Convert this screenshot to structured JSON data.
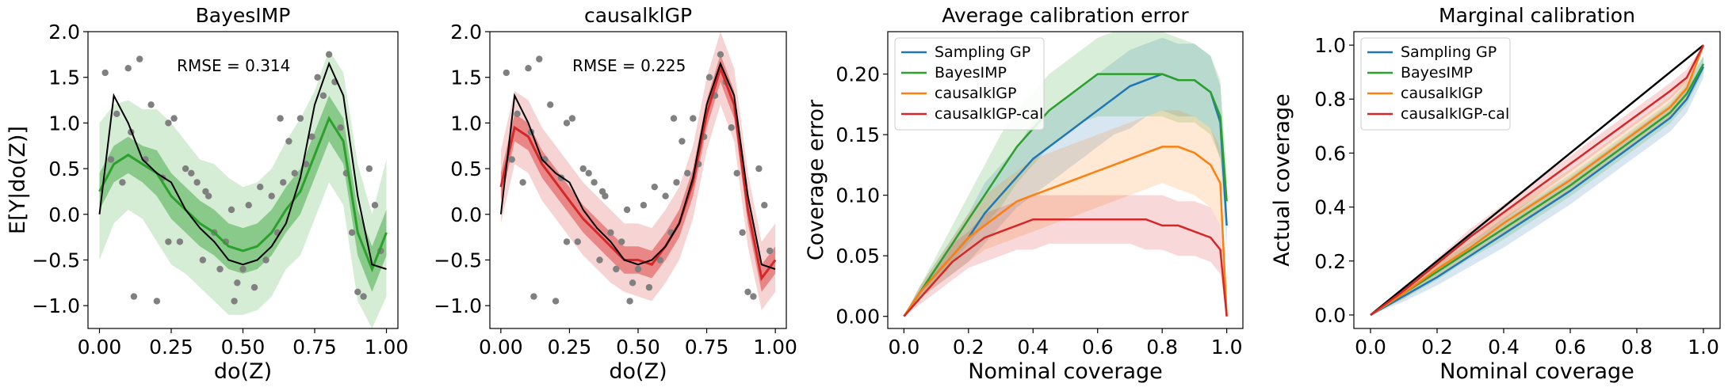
{
  "chart_data": [
    {
      "type": "line",
      "title": "BayesIMP",
      "xlabel": "do(Z)",
      "ylabel": "E[Y|do(Z)]",
      "annotation": "RMSE = 0.314",
      "xlim": [
        -0.04,
        1.04
      ],
      "ylim": [
        -1.25,
        2.0
      ],
      "xticks": [
        0,
        0.25,
        0.5,
        0.75,
        1.0
      ],
      "xtick_labels": [
        "0.00",
        "0.25",
        "0.50",
        "0.75",
        "1.00"
      ],
      "yticks": [
        -1.0,
        -0.5,
        0.0,
        0.5,
        1.0,
        1.5,
        2.0
      ],
      "ytick_labels": [
        "−1.0",
        "−0.5",
        "0.0",
        "0.5",
        "1.0",
        "1.5",
        "2.0"
      ],
      "color": "#2ca02c",
      "x": [
        0,
        0.05,
        0.1,
        0.15,
        0.2,
        0.25,
        0.3,
        0.35,
        0.4,
        0.45,
        0.5,
        0.55,
        0.6,
        0.65,
        0.7,
        0.75,
        0.8,
        0.85,
        0.9,
        0.95,
        1.0
      ],
      "true_effect": [
        0.0,
        1.3,
        1.0,
        0.6,
        0.45,
        0.35,
        0.05,
        -0.15,
        -0.3,
        -0.5,
        -0.55,
        -0.5,
        -0.35,
        -0.1,
        0.4,
        1.2,
        1.65,
        1.3,
        0.2,
        -0.55,
        -0.6
      ],
      "mean": [
        0.25,
        0.55,
        0.65,
        0.55,
        0.45,
        0.2,
        0.05,
        -0.1,
        -0.2,
        -0.35,
        -0.4,
        -0.35,
        -0.2,
        0.05,
        0.25,
        0.65,
        1.05,
        0.8,
        -0.2,
        -0.6,
        -0.2
      ],
      "inner_lower": [
        0.05,
        0.35,
        0.45,
        0.35,
        0.2,
        -0.05,
        -0.2,
        -0.35,
        -0.45,
        -0.6,
        -0.65,
        -0.6,
        -0.45,
        -0.2,
        0.0,
        0.4,
        0.8,
        0.55,
        -0.45,
        -0.85,
        -0.45
      ],
      "inner_upper": [
        0.45,
        0.75,
        0.85,
        0.75,
        0.7,
        0.45,
        0.3,
        0.15,
        0.05,
        -0.1,
        -0.15,
        -0.1,
        0.05,
        0.3,
        0.5,
        0.9,
        1.3,
        1.05,
        0.05,
        -0.35,
        0.05
      ],
      "outer_lower": [
        -0.5,
        -0.1,
        0.05,
        -0.05,
        -0.3,
        -0.55,
        -0.65,
        -0.8,
        -0.95,
        -1.1,
        -1.1,
        -1.05,
        -0.9,
        -0.6,
        -0.45,
        -0.05,
        0.35,
        0.1,
        -0.95,
        -1.25,
        -0.9
      ],
      "outer_upper": [
        1.0,
        1.2,
        1.25,
        1.15,
        1.15,
        1.0,
        0.8,
        0.6,
        0.55,
        0.4,
        0.3,
        0.35,
        0.5,
        0.8,
        1.05,
        1.35,
        1.8,
        1.55,
        0.55,
        0.0,
        0.6
      ],
      "observations_x": [
        0.02,
        0.04,
        0.06,
        0.08,
        0.1,
        0.12,
        0.14,
        0.16,
        0.18,
        0.2,
        0.22,
        0.24,
        0.26,
        0.28,
        0.3,
        0.32,
        0.34,
        0.36,
        0.38,
        0.4,
        0.42,
        0.44,
        0.46,
        0.48,
        0.5,
        0.52,
        0.54,
        0.56,
        0.58,
        0.6,
        0.62,
        0.64,
        0.66,
        0.68,
        0.7,
        0.72,
        0.74,
        0.76,
        0.78,
        0.8,
        0.82,
        0.84,
        0.86,
        0.88,
        0.9,
        0.92,
        0.94,
        0.96,
        0.98,
        0.11,
        0.24,
        0.37,
        0.47,
        0.63
      ],
      "observations_y": [
        1.55,
        0.6,
        1.1,
        0.35,
        1.6,
        -0.9,
        1.7,
        0.6,
        1.2,
        -0.95,
        0.4,
        1.0,
        1.05,
        -0.3,
        0.5,
        0.45,
        0.35,
        -0.5,
        0.2,
        -0.2,
        -0.6,
        -0.3,
        0.05,
        -0.75,
        -0.6,
        0.1,
        -0.8,
        0.3,
        -0.5,
        0.2,
        -0.2,
        0.35,
        0.8,
        0.45,
        1.05,
        0.55,
        0.85,
        1.5,
        1.3,
        1.75,
        1.45,
        0.95,
        0.45,
        -0.2,
        -0.85,
        -0.9,
        0.5,
        0.1,
        -0.4,
        0.9,
        -0.3,
        0.25,
        -0.95,
        1.05
      ]
    },
    {
      "type": "line",
      "title": "causalklGP",
      "xlabel": "do(Z)",
      "annotation": "RMSE = 0.225",
      "xlim": [
        -0.04,
        1.04
      ],
      "ylim": [
        -1.25,
        2.0
      ],
      "xticks": [
        0,
        0.25,
        0.5,
        0.75,
        1.0
      ],
      "xtick_labels": [
        "0.00",
        "0.25",
        "0.50",
        "0.75",
        "1.00"
      ],
      "yticks": [
        -1.0,
        -0.5,
        0.0,
        0.5,
        1.0,
        1.5,
        2.0
      ],
      "ytick_labels": [
        "−1.0",
        "−0.5",
        "0.0",
        "0.5",
        "1.0",
        "1.5",
        "2.0"
      ],
      "color": "#d62728",
      "x": [
        0,
        0.05,
        0.1,
        0.15,
        0.2,
        0.25,
        0.3,
        0.35,
        0.4,
        0.45,
        0.5,
        0.55,
        0.6,
        0.65,
        0.7,
        0.75,
        0.8,
        0.85,
        0.9,
        0.95,
        1.0
      ],
      "true_effect": [
        0.0,
        1.3,
        1.0,
        0.6,
        0.45,
        0.35,
        0.05,
        -0.15,
        -0.3,
        -0.5,
        -0.55,
        -0.5,
        -0.35,
        -0.1,
        0.4,
        1.2,
        1.65,
        1.3,
        0.2,
        -0.55,
        -0.6
      ],
      "mean": [
        0.3,
        0.95,
        0.85,
        0.55,
        0.35,
        0.15,
        -0.05,
        -0.2,
        -0.35,
        -0.5,
        -0.5,
        -0.55,
        -0.35,
        -0.1,
        0.35,
        1.1,
        1.6,
        1.2,
        0.05,
        -0.7,
        -0.5
      ],
      "inner_lower": [
        0.15,
        0.8,
        0.7,
        0.4,
        0.2,
        0.0,
        -0.2,
        -0.35,
        -0.5,
        -0.65,
        -0.65,
        -0.7,
        -0.5,
        -0.25,
        0.2,
        0.95,
        1.45,
        1.05,
        -0.1,
        -0.85,
        -0.65
      ],
      "inner_upper": [
        0.45,
        1.1,
        1.0,
        0.7,
        0.5,
        0.3,
        0.1,
        -0.05,
        -0.2,
        -0.35,
        -0.35,
        -0.4,
        -0.2,
        0.05,
        0.5,
        1.25,
        1.75,
        1.35,
        0.2,
        -0.55,
        -0.35
      ],
      "outer_lower": [
        -0.1,
        0.55,
        0.45,
        0.15,
        -0.05,
        -0.25,
        -0.45,
        -0.6,
        -0.75,
        -0.85,
        -0.9,
        -0.95,
        -0.75,
        -0.5,
        -0.05,
        0.7,
        1.2,
        0.8,
        -0.35,
        -1.05,
        -0.85
      ],
      "outer_upper": [
        0.7,
        1.35,
        1.25,
        0.95,
        0.75,
        0.55,
        0.35,
        0.2,
        0.05,
        -0.1,
        -0.1,
        -0.15,
        0.05,
        0.3,
        0.75,
        1.5,
        2.0,
        1.6,
        0.45,
        -0.3,
        -0.1
      ],
      "observations_x": [
        0.02,
        0.04,
        0.06,
        0.08,
        0.1,
        0.12,
        0.14,
        0.16,
        0.18,
        0.2,
        0.22,
        0.24,
        0.26,
        0.28,
        0.3,
        0.32,
        0.34,
        0.36,
        0.38,
        0.4,
        0.42,
        0.44,
        0.46,
        0.48,
        0.5,
        0.52,
        0.54,
        0.56,
        0.58,
        0.6,
        0.62,
        0.64,
        0.66,
        0.68,
        0.7,
        0.72,
        0.74,
        0.76,
        0.78,
        0.8,
        0.82,
        0.84,
        0.86,
        0.88,
        0.9,
        0.92,
        0.94,
        0.96,
        0.98,
        0.11,
        0.24,
        0.37,
        0.47,
        0.63
      ],
      "observations_y": [
        1.55,
        0.6,
        1.1,
        0.35,
        1.6,
        -0.9,
        1.7,
        0.6,
        1.2,
        -0.95,
        0.4,
        1.0,
        1.05,
        -0.3,
        0.5,
        0.45,
        0.35,
        -0.5,
        0.2,
        -0.2,
        -0.6,
        -0.3,
        0.05,
        -0.75,
        -0.6,
        0.1,
        -0.8,
        0.3,
        -0.5,
        0.2,
        -0.2,
        0.35,
        0.8,
        0.45,
        1.05,
        0.55,
        0.85,
        1.5,
        1.3,
        1.75,
        1.45,
        0.95,
        0.45,
        -0.2,
        -0.85,
        -0.9,
        0.5,
        0.1,
        -0.4,
        0.9,
        -0.3,
        0.25,
        -0.95,
        1.05
      ]
    },
    {
      "type": "line",
      "title": "Average calibration error",
      "xlabel": "Nominal coverage",
      "ylabel": "Coverage error",
      "xlim": [
        -0.05,
        1.05
      ],
      "ylim": [
        -0.01,
        0.235
      ],
      "xticks": [
        0,
        0.2,
        0.4,
        0.6,
        0.8,
        1.0
      ],
      "xtick_labels": [
        "0.0",
        "0.2",
        "0.4",
        "0.6",
        "0.8",
        "1.0"
      ],
      "yticks": [
        0,
        0.05,
        0.1,
        0.15,
        0.2
      ],
      "ytick_labels": [
        "0.00",
        "0.05",
        "0.10",
        "0.15",
        "0.20"
      ],
      "legend": "top-left",
      "x": [
        0,
        0.05,
        0.1,
        0.15,
        0.2,
        0.25,
        0.3,
        0.35,
        0.4,
        0.45,
        0.5,
        0.55,
        0.6,
        0.65,
        0.7,
        0.75,
        0.8,
        0.85,
        0.9,
        0.95,
        0.98,
        1.0
      ],
      "series": [
        {
          "name": "Sampling GP",
          "color": "#1f77b4",
          "values": [
            0,
            0.02,
            0.035,
            0.05,
            0.065,
            0.085,
            0.1,
            0.115,
            0.13,
            0.14,
            0.15,
            0.16,
            0.17,
            0.18,
            0.19,
            0.195,
            0.2,
            0.195,
            0.195,
            0.185,
            0.16,
            0.075
          ],
          "lower": [
            0,
            0.015,
            0.025,
            0.035,
            0.045,
            0.06,
            0.075,
            0.09,
            0.1,
            0.11,
            0.12,
            0.13,
            0.14,
            0.15,
            0.155,
            0.165,
            0.17,
            0.165,
            0.165,
            0.155,
            0.13,
            0.055
          ],
          "upper": [
            0,
            0.025,
            0.045,
            0.065,
            0.085,
            0.11,
            0.125,
            0.14,
            0.16,
            0.17,
            0.18,
            0.19,
            0.2,
            0.21,
            0.22,
            0.225,
            0.23,
            0.225,
            0.225,
            0.215,
            0.19,
            0.1
          ]
        },
        {
          "name": "BayesIMP",
          "color": "#2ca02c",
          "values": [
            0,
            0.02,
            0.04,
            0.06,
            0.08,
            0.1,
            0.12,
            0.14,
            0.155,
            0.17,
            0.18,
            0.19,
            0.2,
            0.2,
            0.2,
            0.2,
            0.2,
            0.195,
            0.195,
            0.185,
            0.165,
            0.095
          ],
          "lower": [
            0,
            0.015,
            0.03,
            0.045,
            0.06,
            0.075,
            0.09,
            0.11,
            0.125,
            0.14,
            0.15,
            0.16,
            0.165,
            0.165,
            0.165,
            0.165,
            0.165,
            0.16,
            0.16,
            0.15,
            0.13,
            0.07
          ],
          "upper": [
            0,
            0.025,
            0.05,
            0.075,
            0.1,
            0.125,
            0.15,
            0.17,
            0.185,
            0.2,
            0.21,
            0.22,
            0.23,
            0.235,
            0.235,
            0.235,
            0.235,
            0.23,
            0.225,
            0.215,
            0.195,
            0.12
          ]
        },
        {
          "name": "causalklGP",
          "color": "#ff7f0e",
          "values": [
            0,
            0.02,
            0.035,
            0.05,
            0.065,
            0.075,
            0.085,
            0.095,
            0.1,
            0.105,
            0.11,
            0.115,
            0.12,
            0.125,
            0.13,
            0.135,
            0.14,
            0.14,
            0.135,
            0.125,
            0.11,
            0.0
          ],
          "lower": [
            0,
            0.015,
            0.025,
            0.035,
            0.045,
            0.055,
            0.06,
            0.065,
            0.07,
            0.075,
            0.08,
            0.085,
            0.09,
            0.095,
            0.1,
            0.105,
            0.11,
            0.105,
            0.1,
            0.09,
            0.075,
            0.0
          ],
          "upper": [
            0,
            0.025,
            0.045,
            0.065,
            0.085,
            0.1,
            0.11,
            0.12,
            0.13,
            0.135,
            0.14,
            0.145,
            0.15,
            0.155,
            0.16,
            0.165,
            0.17,
            0.17,
            0.165,
            0.155,
            0.14,
            0.0
          ]
        },
        {
          "name": "causalklGP-cal",
          "color": "#d62728",
          "values": [
            0,
            0.015,
            0.03,
            0.045,
            0.055,
            0.065,
            0.07,
            0.075,
            0.08,
            0.08,
            0.08,
            0.08,
            0.08,
            0.08,
            0.08,
            0.08,
            0.075,
            0.075,
            0.07,
            0.065,
            0.055,
            0.0
          ],
          "lower": [
            0,
            0.01,
            0.02,
            0.03,
            0.04,
            0.045,
            0.05,
            0.055,
            0.055,
            0.06,
            0.06,
            0.06,
            0.06,
            0.06,
            0.06,
            0.055,
            0.055,
            0.05,
            0.05,
            0.045,
            0.035,
            0.0
          ],
          "upper": [
            0,
            0.02,
            0.04,
            0.06,
            0.07,
            0.085,
            0.09,
            0.095,
            0.1,
            0.1,
            0.1,
            0.1,
            0.1,
            0.1,
            0.1,
            0.1,
            0.1,
            0.095,
            0.095,
            0.09,
            0.075,
            0.0
          ]
        }
      ]
    },
    {
      "type": "line",
      "title": "Marginal calibration",
      "xlabel": "Nominal coverage",
      "ylabel": "Actual coverage",
      "xlim": [
        -0.05,
        1.05
      ],
      "ylim": [
        -0.05,
        1.05
      ],
      "xticks": [
        0,
        0.2,
        0.4,
        0.6,
        0.8,
        1.0
      ],
      "xtick_labels": [
        "0.0",
        "0.2",
        "0.4",
        "0.6",
        "0.8",
        "1.0"
      ],
      "yticks": [
        0,
        0.2,
        0.4,
        0.6,
        0.8,
        1.0
      ],
      "ytick_labels": [
        "0.0",
        "0.2",
        "0.4",
        "0.6",
        "0.8",
        "1.0"
      ],
      "legend": "top-left",
      "reference_line_color": "#000000",
      "x": [
        0,
        0.1,
        0.2,
        0.3,
        0.4,
        0.5,
        0.6,
        0.7,
        0.8,
        0.9,
        0.95,
        1.0
      ],
      "series": [
        {
          "name": "Sampling GP",
          "color": "#1f77b4",
          "values": [
            0,
            0.07,
            0.14,
            0.22,
            0.3,
            0.38,
            0.46,
            0.55,
            0.64,
            0.73,
            0.8,
            0.92
          ],
          "lower": [
            0,
            0.05,
            0.11,
            0.18,
            0.25,
            0.33,
            0.41,
            0.5,
            0.59,
            0.68,
            0.75,
            0.88
          ],
          "upper": [
            0,
            0.09,
            0.17,
            0.26,
            0.35,
            0.43,
            0.51,
            0.6,
            0.69,
            0.78,
            0.85,
            0.96
          ]
        },
        {
          "name": "BayesIMP",
          "color": "#2ca02c",
          "values": [
            0,
            0.08,
            0.16,
            0.24,
            0.32,
            0.4,
            0.48,
            0.57,
            0.66,
            0.75,
            0.82,
            0.93
          ],
          "lower": [
            0,
            0.06,
            0.13,
            0.21,
            0.28,
            0.36,
            0.44,
            0.53,
            0.62,
            0.71,
            0.78,
            0.9
          ],
          "upper": [
            0,
            0.1,
            0.19,
            0.27,
            0.36,
            0.44,
            0.52,
            0.61,
            0.7,
            0.79,
            0.86,
            0.96
          ]
        },
        {
          "name": "causalklGP",
          "color": "#ff7f0e",
          "values": [
            0,
            0.08,
            0.17,
            0.25,
            0.34,
            0.42,
            0.5,
            0.59,
            0.68,
            0.77,
            0.84,
            1.0
          ],
          "lower": [
            0,
            0.06,
            0.14,
            0.22,
            0.3,
            0.38,
            0.46,
            0.55,
            0.64,
            0.73,
            0.8,
            1.0
          ],
          "upper": [
            0,
            0.1,
            0.2,
            0.28,
            0.38,
            0.46,
            0.54,
            0.63,
            0.72,
            0.81,
            0.88,
            1.0
          ]
        },
        {
          "name": "causalklGP-cal",
          "color": "#d62728",
          "values": [
            0,
            0.09,
            0.19,
            0.29,
            0.38,
            0.47,
            0.56,
            0.65,
            0.74,
            0.83,
            0.88,
            1.0
          ],
          "lower": [
            0,
            0.08,
            0.17,
            0.26,
            0.35,
            0.44,
            0.53,
            0.62,
            0.71,
            0.8,
            0.86,
            1.0
          ],
          "upper": [
            0,
            0.1,
            0.21,
            0.32,
            0.41,
            0.5,
            0.59,
            0.68,
            0.77,
            0.86,
            0.91,
            1.0
          ]
        }
      ]
    }
  ]
}
